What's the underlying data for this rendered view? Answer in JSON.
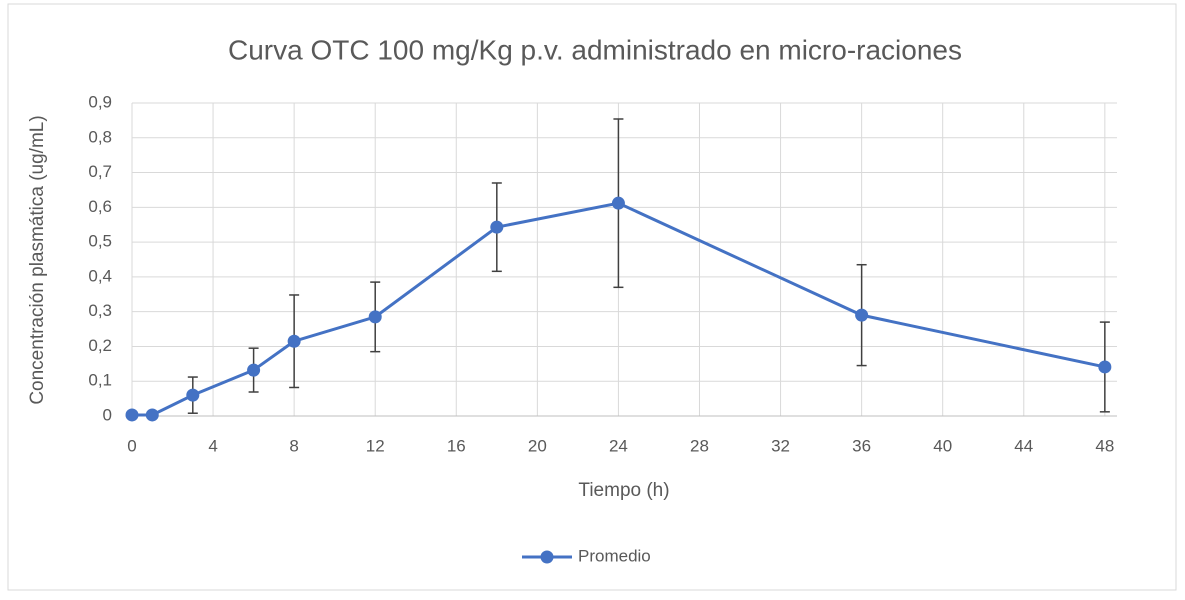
{
  "chart_data": {
    "type": "line",
    "title": "Curva OTC 100 mg/Kg p.v. administrado en micro-raciones",
    "x_label": "Tiempo (h)",
    "y_label": "Concentración plasmática (ug/mL)",
    "x": [
      0,
      1,
      3,
      6,
      8,
      12,
      18,
      24,
      36,
      48
    ],
    "series": [
      {
        "name": "Promedio",
        "color": "#4472c4",
        "values": [
          0.003,
          0.003,
          0.06,
          0.132,
          0.215,
          0.285,
          0.543,
          0.612,
          0.29,
          0.141
        ],
        "errors": [
          null,
          null,
          0.052,
          0.063,
          0.133,
          0.1,
          0.127,
          0.242,
          0.145,
          0.129
        ]
      }
    ],
    "xlim": [
      0,
      48.6
    ],
    "xticks": [
      0,
      4,
      8,
      12,
      16,
      20,
      24,
      28,
      32,
      36,
      40,
      44,
      48
    ],
    "ylim": [
      0,
      0.9
    ],
    "yticks": [
      0,
      {
        "value": 0.1,
        "label": "0,1"
      },
      {
        "value": 0.2,
        "label": "0,2"
      },
      {
        "value": 0.3,
        "label": "0,3"
      },
      {
        "value": 0.4,
        "label": "0,4"
      },
      {
        "value": 0.5,
        "label": "0,5"
      },
      {
        "value": 0.6,
        "label": "0,6"
      },
      {
        "value": 0.7,
        "label": "0,7"
      },
      {
        "value": 0.8,
        "label": "0,8"
      },
      {
        "value": 0.9,
        "label": "0,9"
      }
    ],
    "grid": true,
    "legend": "bottom"
  }
}
